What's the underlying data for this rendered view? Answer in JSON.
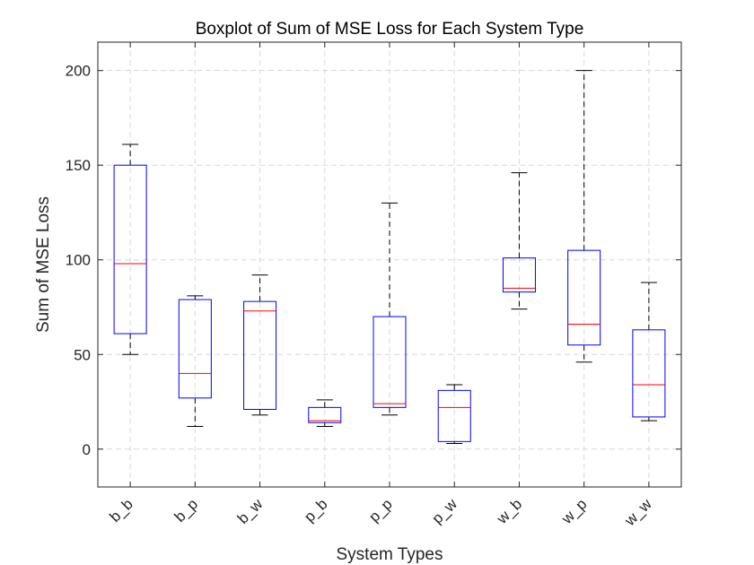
{
  "chart_data": {
    "type": "boxplot",
    "title": "Boxplot of Sum of MSE Loss for Each System Type",
    "xlabel": "System Types",
    "ylabel": "Sum of MSE Loss",
    "ylim": [
      -20,
      215
    ],
    "yticks": [
      0,
      50,
      100,
      150,
      200
    ],
    "grid": true,
    "categories": [
      "b_b",
      "b_p",
      "b_w",
      "p_b",
      "p_p",
      "p_w",
      "w_b",
      "w_p",
      "w_w"
    ],
    "boxes": [
      {
        "category": "b_b",
        "min": 50,
        "q1": 61,
        "median": 98,
        "q3": 150,
        "max": 161
      },
      {
        "category": "b_p",
        "min": 12,
        "q1": 27,
        "median": 40,
        "q3": 79,
        "max": 81
      },
      {
        "category": "b_w",
        "min": 18,
        "q1": 21,
        "median": 73,
        "q3": 78,
        "max": 92
      },
      {
        "category": "p_b",
        "min": 12,
        "q1": 14,
        "median": 15,
        "q3": 22,
        "max": 26
      },
      {
        "category": "p_p",
        "min": 18,
        "q1": 22,
        "median": 24,
        "q3": 70,
        "max": 130
      },
      {
        "category": "p_w",
        "min": 3,
        "q1": 4,
        "median": 22,
        "q3": 31,
        "max": 34
      },
      {
        "category": "w_b",
        "min": 74,
        "q1": 83,
        "median": 85,
        "q3": 101,
        "max": 146
      },
      {
        "category": "w_p",
        "min": 46,
        "q1": 55,
        "median": 66,
        "q3": 105,
        "max": 200
      },
      {
        "category": "w_w",
        "min": 15,
        "q1": 17,
        "median": 34,
        "q3": 63,
        "max": 88
      }
    ],
    "colors": {
      "box": "#0000ff",
      "median": "#ff0000",
      "whisker": "#000000",
      "grid": "#d9d9d9",
      "axes": "#262626"
    }
  }
}
